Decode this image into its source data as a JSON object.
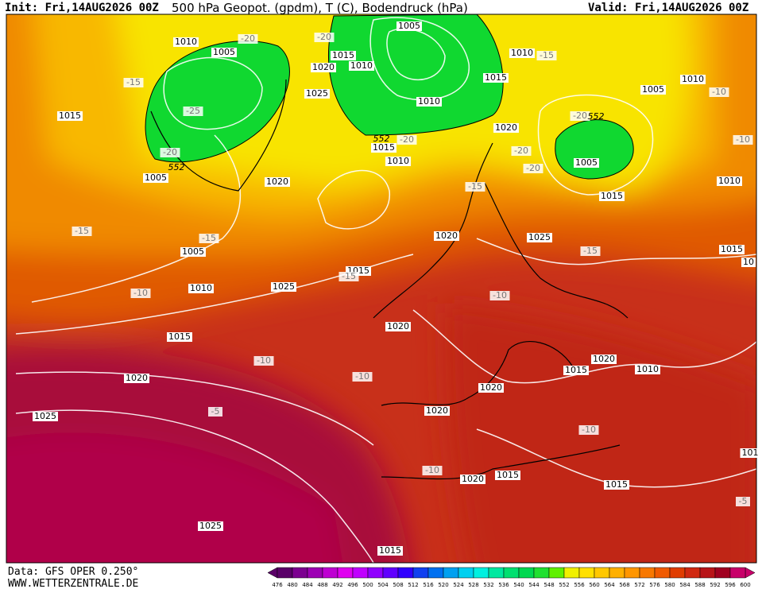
{
  "header": {
    "init": "Init: Fri,14AUG2026 00Z",
    "title": "500 hPa Geopot. (gpdm), T (C), Bodendruck (hPa)",
    "valid": "Valid: Fri,14AUG2026 00Z"
  },
  "footer": {
    "data": "Data: GFS OPER 0.250°",
    "site": "WWW.WETTERZENTRALE.DE"
  },
  "map": {
    "labels": [
      1010,
      -20,
      1005,
      -20,
      1005,
      1015,
      1020,
      1010,
      1010,
      -15,
      1015,
      1010,
      1005,
      -10,
      -15,
      -25,
      1015,
      1025,
      1010,
      1020,
      552,
      1015,
      -20,
      -20,
      552,
      -20,
      -10,
      -20,
      552,
      1005,
      1010,
      -20,
      1005,
      1020,
      -15,
      1015,
      1010,
      -15,
      1020,
      1025,
      -15,
      1005,
      1015,
      -15,
      10,
      1015,
      -15,
      1025,
      1010,
      -10,
      -10,
      1020,
      1015,
      -10,
      1020,
      1015,
      1010,
      -10,
      1020,
      1020,
      1025,
      -5,
      1020,
      -10,
      -10,
      1015,
      1020,
      1015,
      -5,
      1025,
      1015,
      101
    ]
  },
  "colorbar": {
    "ticks": [
      476,
      480,
      484,
      488,
      492,
      496,
      500,
      504,
      508,
      512,
      516,
      520,
      524,
      528,
      532,
      536,
      540,
      544,
      548,
      552,
      556,
      560,
      564,
      568,
      572,
      576,
      580,
      584,
      588,
      592,
      596,
      600
    ],
    "colors": [
      "#5a0068",
      "#7c0090",
      "#9d00b4",
      "#be00d2",
      "#e000f0",
      "#c000ff",
      "#9000ff",
      "#6000ff",
      "#3000ff",
      "#1040f0",
      "#0070f0",
      "#00a0f0",
      "#00d0f0",
      "#00f0e0",
      "#00e8a0",
      "#00e070",
      "#00d850",
      "#20e030",
      "#60f000",
      "#f0f000",
      "#ffe000",
      "#ffc800",
      "#ffb000",
      "#ff9600",
      "#f87800",
      "#f05a00",
      "#e03c00",
      "#d02810",
      "#b81418",
      "#a00020",
      "#c8006a"
    ]
  }
}
